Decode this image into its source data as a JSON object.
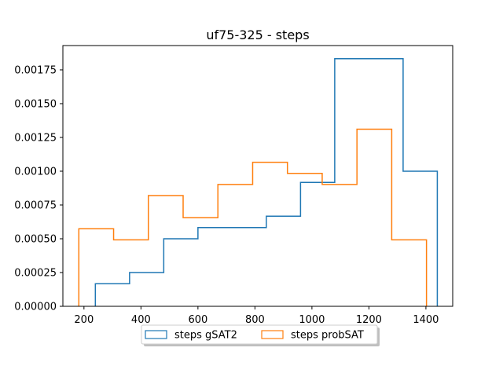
{
  "chart_data": {
    "type": "histogram",
    "title": "uf75-325 - steps",
    "xlabel": "",
    "ylabel": "",
    "xlim": [
      126,
      1494
    ],
    "ylim": [
      0,
      0.00193
    ],
    "xticks": [
      200,
      400,
      600,
      800,
      1000,
      1200,
      1400
    ],
    "xtick_labels": [
      "200",
      "400",
      "600",
      "800",
      "1000",
      "1200",
      "1400"
    ],
    "yticks": [
      0,
      0.00025,
      0.0005,
      0.00075,
      0.001,
      0.00125,
      0.0015,
      0.00175
    ],
    "ytick_labels": [
      "0.00000",
      "0.00025",
      "0.00050",
      "0.00075",
      "0.00100",
      "0.00125",
      "0.00150",
      "0.00175"
    ],
    "grid": false,
    "legend_position": "bottom-center",
    "series": [
      {
        "name": "steps gSAT2",
        "color": "#1f77b4",
        "bin_edges": [
          240,
          360,
          480,
          600,
          720,
          840,
          960,
          1080,
          1200,
          1320,
          1440
        ],
        "values": [
          0.000167,
          0.00025,
          0.0005,
          0.000583,
          0.000583,
          0.000667,
          0.000917,
          0.001833,
          0.001833,
          0.001
        ]
      },
      {
        "name": "steps probSAT",
        "color": "#ff7f0e",
        "bin_edges": [
          182,
          304,
          426,
          548,
          670,
          792,
          914,
          1036,
          1158,
          1280,
          1402
        ],
        "values": [
          0.000574,
          0.000492,
          0.00082,
          0.000656,
          0.000902,
          0.001066,
          0.000984,
          0.000902,
          0.001311,
          0.000492
        ]
      }
    ]
  }
}
